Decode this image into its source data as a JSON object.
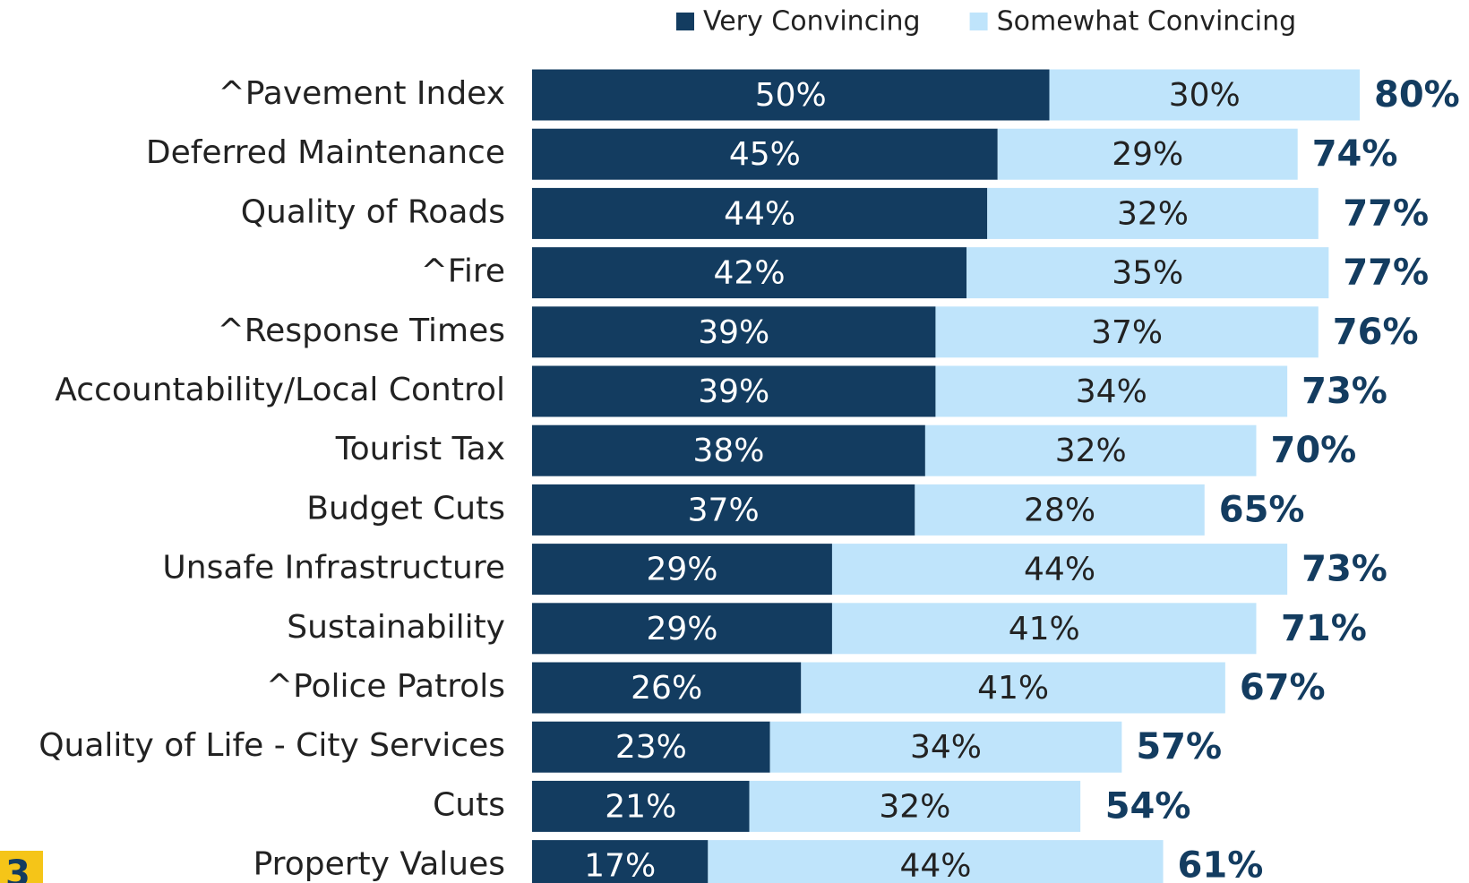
{
  "chart_data": {
    "type": "stacked_bar_horizontal",
    "categories": [
      "^Pavement Index",
      "Deferred Maintenance",
      "Quality of Roads",
      "^Fire",
      "^Response Times",
      "Accountability/Local Control",
      "Tourist Tax",
      "Budget Cuts",
      "Unsafe Infrastructure",
      "Sustainability",
      "^Police Patrols",
      "Quality of Life - City Services",
      "Cuts",
      "Property Values"
    ],
    "series": [
      {
        "name": "Very Convincing",
        "color": "#133c60",
        "values": [
          50,
          45,
          44,
          42,
          39,
          39,
          38,
          37,
          29,
          29,
          26,
          23,
          21,
          17
        ],
        "value_labels": [
          "50%",
          "45%",
          "44%",
          "42%",
          "39%",
          "39%",
          "38%",
          "37%",
          "29%",
          "29%",
          "26%",
          "23%",
          "21%",
          "17%"
        ]
      },
      {
        "name": "Somewhat Convincing",
        "color": "#bfe4fb",
        "values": [
          30,
          29,
          32,
          35,
          37,
          34,
          32,
          28,
          44,
          41,
          41,
          34,
          32,
          44
        ],
        "value_labels": [
          "30%",
          "29%",
          "32%",
          "35%",
          "37%",
          "34%",
          "32%",
          "28%",
          "44%",
          "41%",
          "41%",
          "34%",
          "32%",
          "44%"
        ]
      }
    ],
    "totals": [
      80,
      74,
      77,
      77,
      76,
      73,
      70,
      65,
      73,
      71,
      67,
      57,
      54,
      61
    ],
    "total_labels": [
      "80%",
      "74%",
      "77%",
      "77%",
      "76%",
      "73%",
      "70%",
      "65%",
      "73%",
      "71%",
      "67%",
      "57%",
      "54%",
      "61%"
    ],
    "total_color": "#133c60",
    "legend": "top",
    "slide_number": "3"
  }
}
